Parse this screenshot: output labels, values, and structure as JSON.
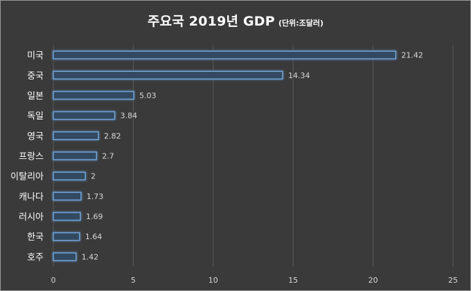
{
  "chart_data": {
    "type": "bar",
    "orientation": "horizontal",
    "title": "주요국 2019년 GDP",
    "subtitle": "(단위:조달러)",
    "categories": [
      "미국",
      "중국",
      "일본",
      "독일",
      "영국",
      "프랑스",
      "이탈리아",
      "캐나다",
      "러시아",
      "한국",
      "호주"
    ],
    "values": [
      21.42,
      14.34,
      5.03,
      3.84,
      2.82,
      2.7,
      2,
      1.73,
      1.69,
      1.64,
      1.42
    ],
    "value_labels": [
      "21.42",
      "14.34",
      "5.03",
      "3.84",
      "2.82",
      "2.7",
      "2",
      "1.73",
      "1.69",
      "1.64",
      "1.42"
    ],
    "xlim": [
      0,
      25
    ],
    "xticks": [
      0,
      5,
      10,
      15,
      20,
      25
    ],
    "xtick_labels": [
      "0",
      "5",
      "10",
      "15",
      "20",
      "25"
    ],
    "xlabel": "",
    "ylabel": "",
    "grid": true,
    "legend": "none",
    "colors": {
      "background": "#3a3a3a",
      "bar_fill": "#33485f",
      "bar_edge": "#6fa3d9",
      "bar_glow": "#3d7fc4",
      "gridline": "#5a5a5a",
      "text": "#ffffff",
      "tick_text": "#d9d9d9"
    }
  }
}
